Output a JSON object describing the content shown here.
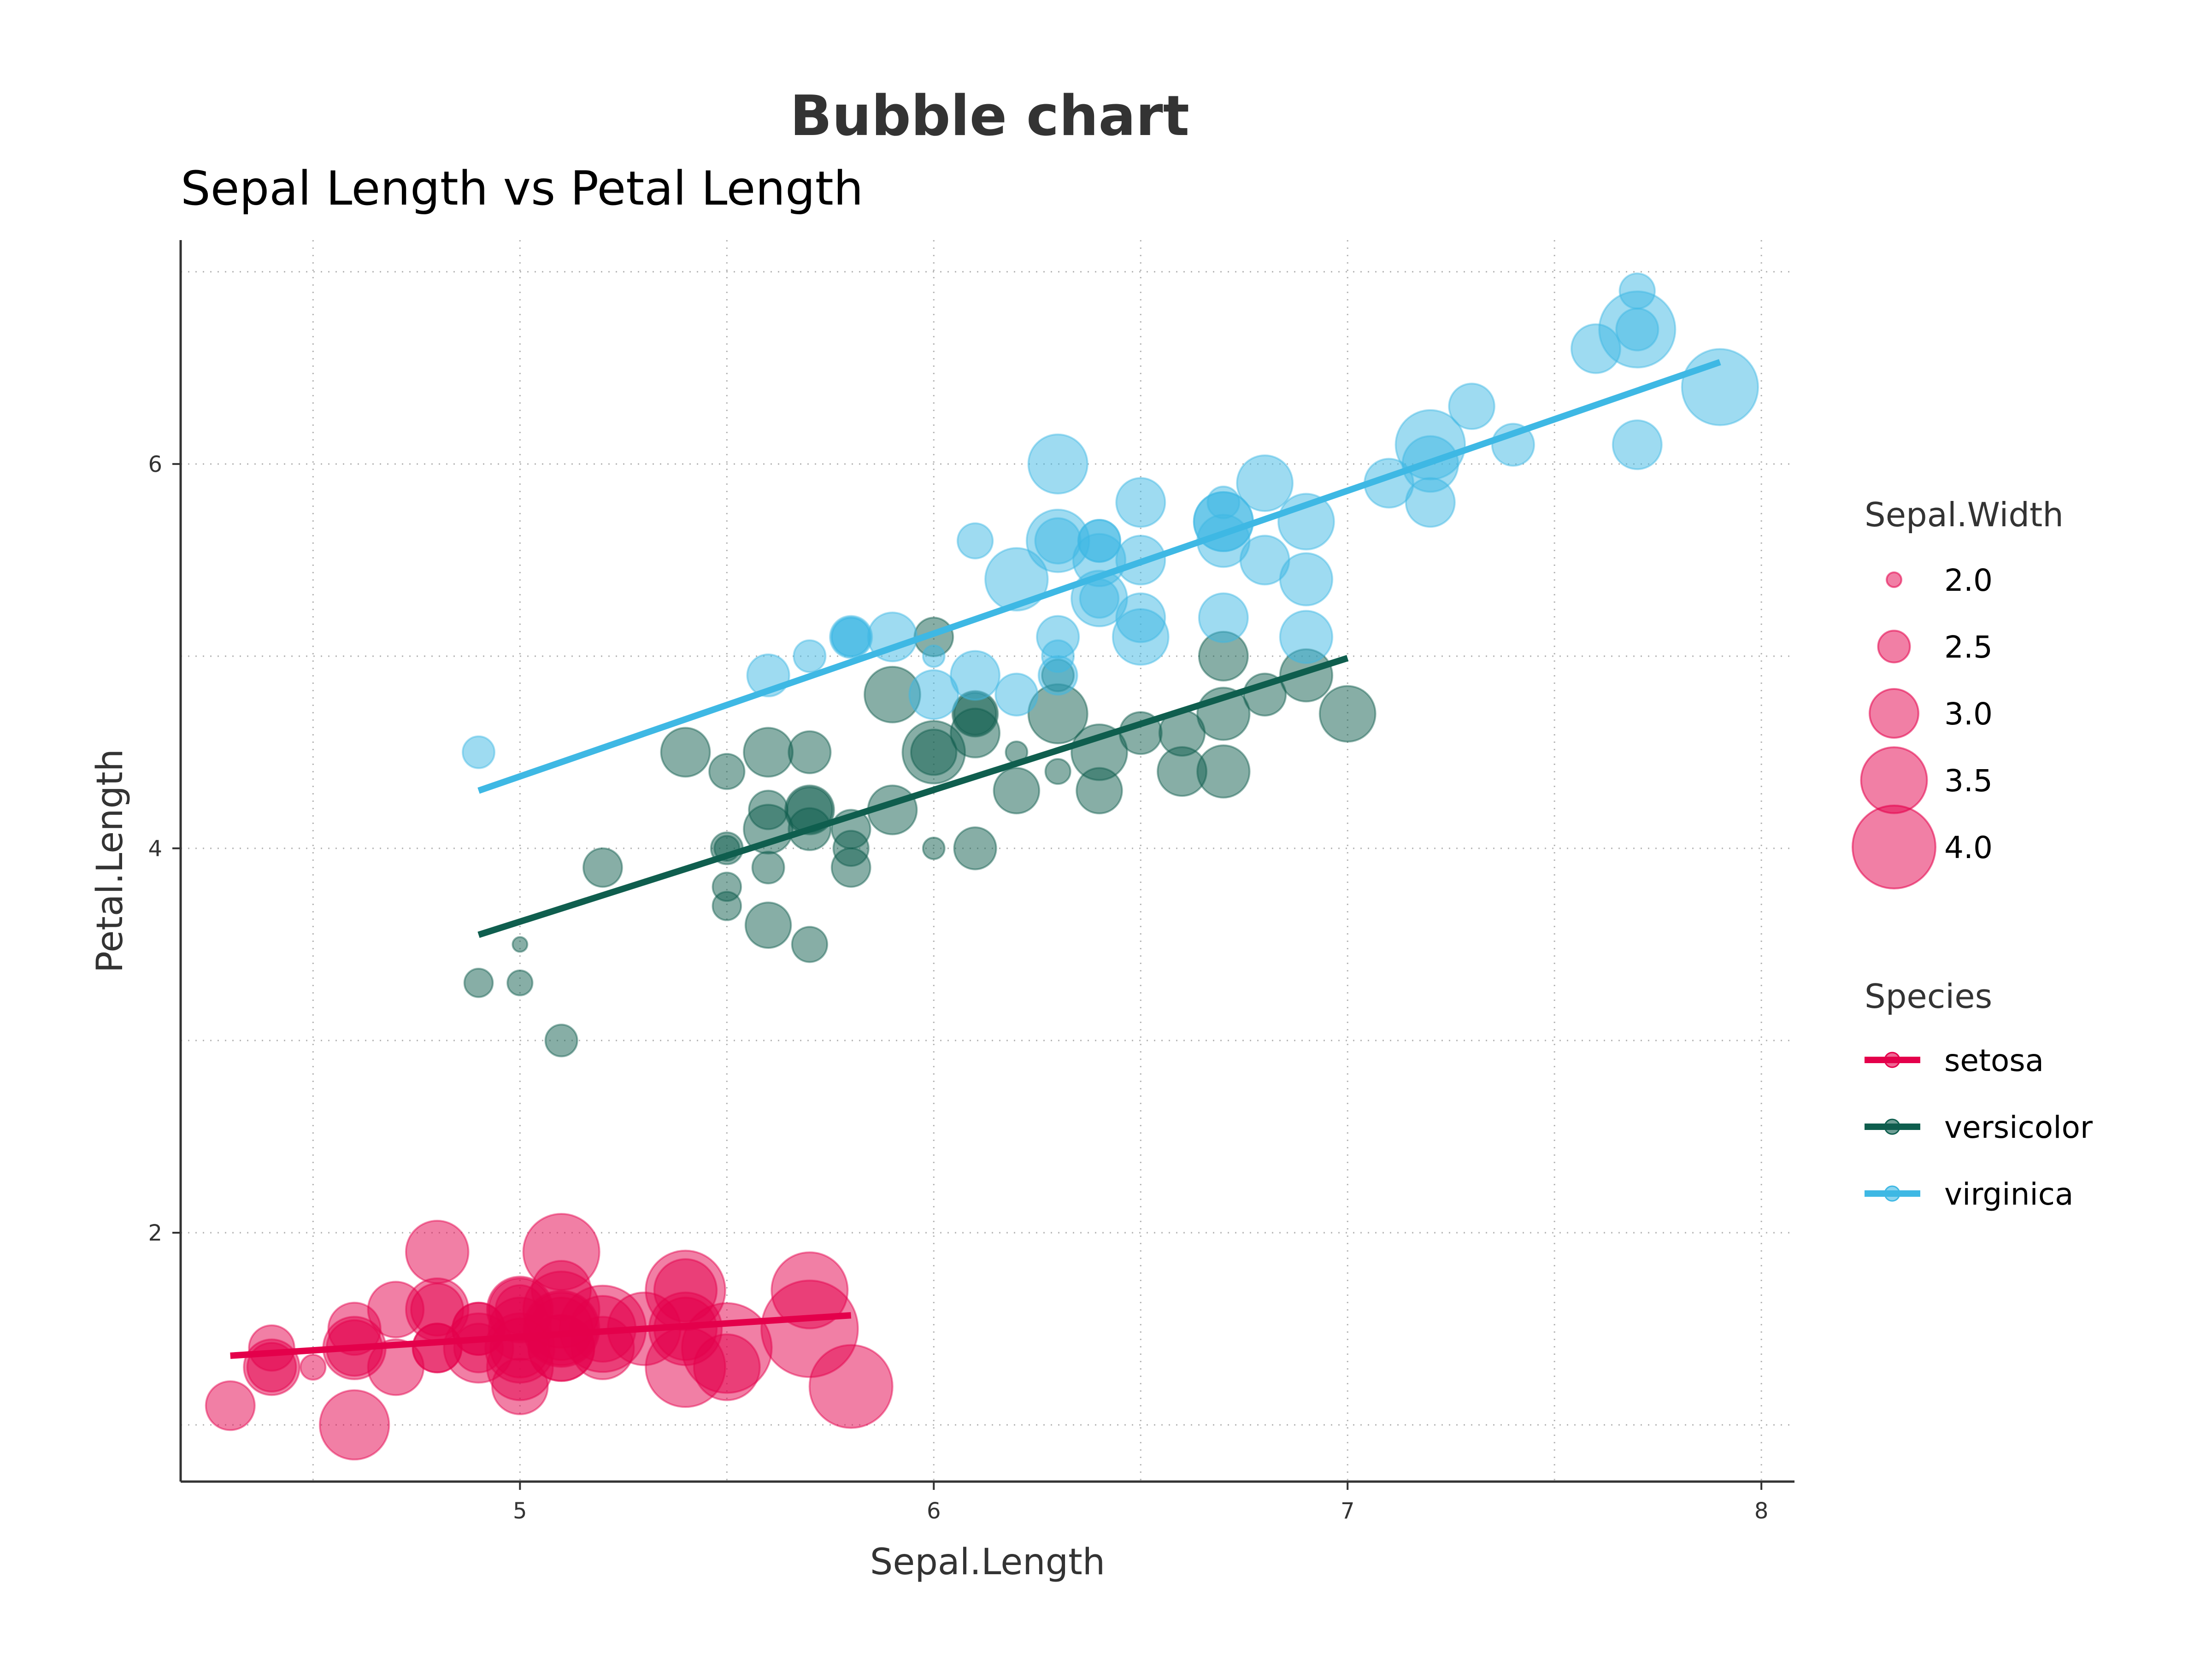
{
  "chart_data": {
    "type": "scatter",
    "title": "Bubble chart",
    "subtitle": "Sepal Length vs Petal Length",
    "xlabel": "Sepal.Length",
    "ylabel": "Petal.Length",
    "xlim": [
      4.18,
      8.08
    ],
    "ylim": [
      0.705,
      7.165
    ],
    "xticks": [
      5,
      6,
      7,
      8
    ],
    "yticks": [
      2,
      4,
      6
    ],
    "grid": true,
    "size_legend": {
      "title": "Sepal.Width",
      "entries": [
        {
          "label": "2.0",
          "value": 2.0
        },
        {
          "label": "2.5",
          "value": 2.5
        },
        {
          "label": "3.0",
          "value": 3.0
        },
        {
          "label": "3.5",
          "value": 3.5
        },
        {
          "label": "4.0",
          "value": 4.0
        }
      ]
    },
    "color_legend_title": "Species",
    "legend_position": "right",
    "series": [
      {
        "name": "setosa",
        "color": "#E4004B",
        "fit": {
          "x": [
            4.3,
            5.8
          ],
          "y": [
            1.36,
            1.57
          ]
        },
        "points": [
          [
            5.1,
            1.4,
            3.5
          ],
          [
            4.9,
            1.4,
            3.0
          ],
          [
            4.7,
            1.3,
            3.2
          ],
          [
            4.6,
            1.5,
            3.1
          ],
          [
            5.0,
            1.4,
            3.6
          ],
          [
            5.4,
            1.7,
            3.9
          ],
          [
            4.6,
            1.4,
            3.4
          ],
          [
            5.0,
            1.5,
            3.4
          ],
          [
            4.4,
            1.4,
            2.9
          ],
          [
            4.9,
            1.5,
            3.1
          ],
          [
            5.4,
            1.5,
            3.7
          ],
          [
            4.8,
            1.6,
            3.4
          ],
          [
            4.8,
            1.4,
            3.0
          ],
          [
            4.3,
            1.1,
            3.0
          ],
          [
            5.8,
            1.2,
            4.0
          ],
          [
            5.7,
            1.5,
            4.4
          ],
          [
            5.4,
            1.3,
            3.9
          ],
          [
            5.1,
            1.4,
            3.5
          ],
          [
            5.7,
            1.7,
            3.8
          ],
          [
            5.1,
            1.5,
            3.8
          ],
          [
            5.4,
            1.7,
            3.4
          ],
          [
            5.1,
            1.5,
            3.7
          ],
          [
            4.6,
            1.0,
            3.6
          ],
          [
            5.1,
            1.7,
            3.3
          ],
          [
            4.8,
            1.9,
            3.4
          ],
          [
            5.0,
            1.6,
            3.0
          ],
          [
            5.0,
            1.6,
            3.4
          ],
          [
            5.2,
            1.5,
            3.5
          ],
          [
            5.2,
            1.4,
            3.4
          ],
          [
            4.7,
            1.6,
            3.2
          ],
          [
            4.8,
            1.6,
            3.1
          ],
          [
            5.4,
            1.5,
            3.4
          ],
          [
            5.2,
            1.5,
            4.1
          ],
          [
            5.5,
            1.4,
            4.2
          ],
          [
            4.9,
            1.5,
            3.1
          ],
          [
            5.0,
            1.2,
            3.2
          ],
          [
            5.5,
            1.3,
            3.5
          ],
          [
            4.9,
            1.4,
            3.6
          ],
          [
            4.4,
            1.3,
            3.0
          ],
          [
            5.1,
            1.5,
            3.4
          ],
          [
            5.0,
            1.3,
            3.5
          ],
          [
            4.5,
            1.3,
            2.3
          ],
          [
            4.4,
            1.3,
            3.2
          ],
          [
            5.0,
            1.6,
            3.5
          ],
          [
            5.1,
            1.9,
            3.8
          ],
          [
            4.8,
            1.4,
            3.0
          ],
          [
            5.1,
            1.6,
            3.8
          ],
          [
            4.6,
            1.4,
            3.2
          ],
          [
            5.3,
            1.5,
            3.7
          ],
          [
            5.0,
            1.4,
            3.3
          ]
        ]
      },
      {
        "name": "versicolor",
        "color": "#0F5E4E",
        "fit": {
          "x": [
            4.9,
            7.0
          ],
          "y": [
            3.55,
            4.99
          ]
        },
        "points": [
          [
            7.0,
            4.7,
            3.2
          ],
          [
            6.4,
            4.5,
            3.2
          ],
          [
            6.9,
            4.9,
            3.1
          ],
          [
            5.5,
            4.0,
            2.3
          ],
          [
            6.5,
            4.6,
            2.8
          ],
          [
            5.7,
            4.5,
            2.8
          ],
          [
            6.3,
            4.7,
            3.3
          ],
          [
            4.9,
            3.3,
            2.4
          ],
          [
            6.6,
            4.6,
            2.9
          ],
          [
            5.2,
            3.9,
            2.7
          ],
          [
            5.0,
            3.5,
            2.0
          ],
          [
            5.9,
            4.2,
            3.0
          ],
          [
            6.0,
            4.0,
            2.2
          ],
          [
            6.1,
            4.7,
            2.9
          ],
          [
            5.6,
            3.6,
            2.9
          ],
          [
            6.7,
            4.4,
            3.1
          ],
          [
            5.6,
            4.5,
            3.0
          ],
          [
            5.8,
            4.1,
            2.7
          ],
          [
            6.2,
            4.5,
            2.2
          ],
          [
            5.6,
            3.9,
            2.5
          ],
          [
            5.9,
            4.8,
            3.2
          ],
          [
            6.1,
            4.0,
            2.8
          ],
          [
            6.3,
            4.9,
            2.5
          ],
          [
            6.1,
            4.7,
            2.8
          ],
          [
            6.4,
            4.3,
            2.9
          ],
          [
            6.6,
            4.4,
            3.0
          ],
          [
            6.8,
            4.8,
            2.8
          ],
          [
            6.7,
            5.0,
            3.0
          ],
          [
            6.0,
            4.5,
            2.9
          ],
          [
            5.7,
            3.5,
            2.6
          ],
          [
            5.5,
            3.8,
            2.4
          ],
          [
            5.5,
            3.7,
            2.4
          ],
          [
            5.8,
            3.9,
            2.7
          ],
          [
            6.0,
            5.1,
            2.7
          ],
          [
            5.4,
            4.5,
            3.0
          ],
          [
            6.0,
            4.5,
            3.4
          ],
          [
            6.7,
            4.7,
            3.1
          ],
          [
            6.3,
            4.4,
            2.3
          ],
          [
            5.6,
            4.1,
            3.0
          ],
          [
            5.5,
            4.0,
            2.5
          ],
          [
            5.5,
            4.4,
            2.6
          ],
          [
            6.1,
            4.6,
            3.0
          ],
          [
            5.8,
            4.0,
            2.6
          ],
          [
            5.0,
            3.3,
            2.3
          ],
          [
            5.6,
            4.2,
            2.7
          ],
          [
            5.7,
            4.2,
            3.0
          ],
          [
            5.7,
            4.2,
            2.9
          ],
          [
            6.2,
            4.3,
            2.9
          ],
          [
            5.1,
            3.0,
            2.5
          ],
          [
            5.7,
            4.1,
            2.8
          ]
        ]
      },
      {
        "name": "virginica",
        "color": "#3EB8E4",
        "fit": {
          "x": [
            4.9,
            7.9
          ],
          "y": [
            4.3,
            6.53
          ]
        },
        "points": [
          [
            6.3,
            6.0,
            3.3
          ],
          [
            5.8,
            5.1,
            2.7
          ],
          [
            7.1,
            5.9,
            3.0
          ],
          [
            6.3,
            5.6,
            2.9
          ],
          [
            6.5,
            5.8,
            3.0
          ],
          [
            7.6,
            6.6,
            3.0
          ],
          [
            4.9,
            4.5,
            2.5
          ],
          [
            7.3,
            6.3,
            2.9
          ],
          [
            6.7,
            5.8,
            2.5
          ],
          [
            7.2,
            6.1,
            3.6
          ],
          [
            6.5,
            5.1,
            3.2
          ],
          [
            6.4,
            5.3,
            2.7
          ],
          [
            6.8,
            5.5,
            3.0
          ],
          [
            5.7,
            5.0,
            2.5
          ],
          [
            5.8,
            5.1,
            2.8
          ],
          [
            6.4,
            5.3,
            3.2
          ],
          [
            6.5,
            5.5,
            3.0
          ],
          [
            7.7,
            6.7,
            3.8
          ],
          [
            7.7,
            6.9,
            2.6
          ],
          [
            6.0,
            5.0,
            2.2
          ],
          [
            6.9,
            5.7,
            3.2
          ],
          [
            5.6,
            4.9,
            2.8
          ],
          [
            7.7,
            6.7,
            2.8
          ],
          [
            6.3,
            4.9,
            2.7
          ],
          [
            6.7,
            5.7,
            3.3
          ],
          [
            7.2,
            6.0,
            3.2
          ],
          [
            6.2,
            4.8,
            2.8
          ],
          [
            6.1,
            4.9,
            3.0
          ],
          [
            6.4,
            5.6,
            2.8
          ],
          [
            7.2,
            5.8,
            3.0
          ],
          [
            7.4,
            6.1,
            2.8
          ],
          [
            7.9,
            6.4,
            3.8
          ],
          [
            6.4,
            5.6,
            2.8
          ],
          [
            6.3,
            5.1,
            2.8
          ],
          [
            6.1,
            5.6,
            2.6
          ],
          [
            7.7,
            6.1,
            3.0
          ],
          [
            6.3,
            5.6,
            3.4
          ],
          [
            6.4,
            5.5,
            3.1
          ],
          [
            6.0,
            4.8,
            3.0
          ],
          [
            6.9,
            5.4,
            3.1
          ],
          [
            6.7,
            5.6,
            3.1
          ],
          [
            6.9,
            5.1,
            3.1
          ],
          [
            5.8,
            5.1,
            2.7
          ],
          [
            6.8,
            5.9,
            3.2
          ],
          [
            6.7,
            5.7,
            3.3
          ],
          [
            6.7,
            5.2,
            3.0
          ],
          [
            6.3,
            5.0,
            2.5
          ],
          [
            6.5,
            5.2,
            3.0
          ],
          [
            6.2,
            5.4,
            3.4
          ],
          [
            5.9,
            5.1,
            3.0
          ]
        ]
      }
    ]
  }
}
